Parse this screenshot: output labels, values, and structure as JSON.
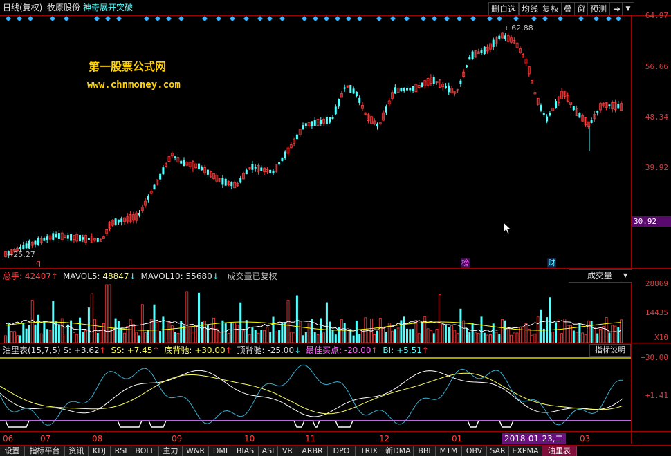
{
  "header": {
    "period": "日线(复权)",
    "stock_name": "牧原股份",
    "formula_name": "神奇展开突破",
    "buttons": [
      "删自选",
      "均线",
      "复权",
      "叠",
      "窗",
      "预测"
    ],
    "nav_icon": "arrow-right-icon",
    "dropdown_icon": "triangle-down-icon"
  },
  "watermark": {
    "title": "第一股票公式网",
    "url": "www.chnmoney.com"
  },
  "price_panel": {
    "axis_labels": [
      "64.97",
      "56.66",
      "48.34",
      "39.92",
      "30.92"
    ],
    "current_price_label": "30.92",
    "high_label": "62.88",
    "low_label": "25.27",
    "markers": [
      "q",
      "榜",
      "财"
    ]
  },
  "volume_panel": {
    "title_label": "总手:",
    "total_value": "42407",
    "mavol5_label": "MAVOL5:",
    "mavol5_value": "48847",
    "mavol10_label": "MAVOL10:",
    "mavol10_value": "55680",
    "note": "成交量已复权",
    "selector_value": "成交量",
    "axis_labels": [
      "28869",
      "14435"
    ],
    "unit_label": "X10"
  },
  "indicator_panel": {
    "name": "油里表(15,7,5)",
    "s_label": "S:",
    "s_value": "+3.62",
    "ss_label": "SS:",
    "ss_value": "+7.45",
    "bottom_div_label": "底背驰:",
    "bottom_div_value": "+30.00",
    "top_div_label": "顶背驰:",
    "top_div_value": "-25.00",
    "best_buy_label": "最佳买点:",
    "best_buy_value": "-20.00",
    "bi_label": "BI:",
    "bi_value": "+5.51",
    "help_button": "指标说明",
    "axis_labels": [
      "+30.00",
      "+1.41"
    ]
  },
  "time_axis": {
    "labels": [
      "06",
      "07",
      "08",
      "09",
      "10",
      "11",
      "12",
      "01",
      "03"
    ],
    "cursor_date": "2018-01-23,二"
  },
  "bottom_tabs": [
    "设置",
    "指标平台",
    "资讯",
    "KDJ",
    "RSI",
    "BOLL",
    "主力",
    "W&R",
    "DMI",
    "BIAS",
    "ASI",
    "VR",
    "ARBR",
    "DPO",
    "TRIX",
    "新DMA",
    "BBI",
    "MTM",
    "OBV",
    "SAR",
    "EXPMA",
    "油里表"
  ],
  "colors": {
    "up": "#ff3c3c",
    "down": "#54ffff",
    "axis": "#a00000",
    "marker": "#3bb3ff",
    "watermark": "#ffd200",
    "mavol5": "#ffffff",
    "mavol10": "#ffff00"
  }
}
